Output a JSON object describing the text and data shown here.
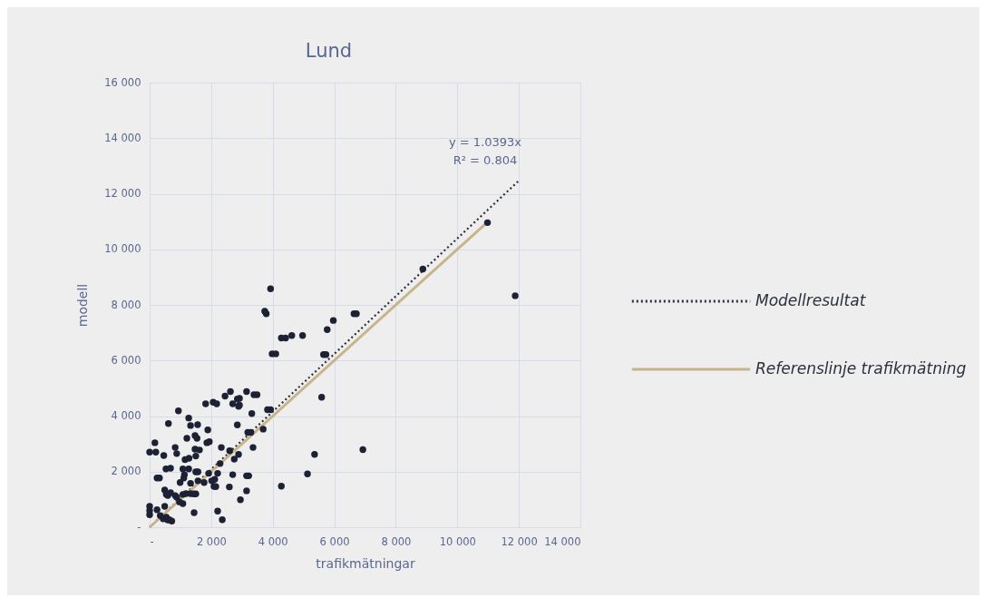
{
  "chart_data": {
    "type": "scatter",
    "title": "Lund",
    "xlabel": "trafikmätningar",
    "ylabel": "modell",
    "annotations": [
      "y = 1.0393x",
      "R² = 0.804"
    ],
    "xlim": [
      0,
      14000
    ],
    "ylim": [
      0,
      16000
    ],
    "xticks": [
      {
        "value": 0,
        "label": "-"
      },
      {
        "value": 2000,
        "label": "2 000"
      },
      {
        "value": 4000,
        "label": "4 000"
      },
      {
        "value": 6000,
        "label": "6 000"
      },
      {
        "value": 8000,
        "label": "8 000"
      },
      {
        "value": 10000,
        "label": "10 000"
      },
      {
        "value": 12000,
        "label": "12 000"
      },
      {
        "value": 14000,
        "label": "14 000"
      }
    ],
    "yticks": [
      {
        "value": 0,
        "label": "-"
      },
      {
        "value": 2000,
        "label": "2 000"
      },
      {
        "value": 4000,
        "label": "4 000"
      },
      {
        "value": 6000,
        "label": "6 000"
      },
      {
        "value": 8000,
        "label": "8 000"
      },
      {
        "value": 10000,
        "label": "10 000"
      },
      {
        "value": 12000,
        "label": "12 000"
      },
      {
        "value": 14000,
        "label": "14 000"
      },
      {
        "value": 16000,
        "label": "16 000"
      }
    ],
    "grid": true,
    "legend": "right",
    "marker": "circle",
    "series": [
      {
        "type": "line",
        "name": "Modellresultat",
        "color": "#2b2f3e",
        "line_style": "dotted",
        "marker": "none",
        "x": [
          0,
          12000
        ],
        "values": [
          0,
          12470
        ]
      },
      {
        "type": "line",
        "name": "Referenslinje trafikmätning",
        "color": "#c8b48a",
        "line_style": "solid",
        "marker": "none",
        "x": [
          0,
          11000
        ],
        "values": [
          0,
          11000
        ]
      },
      {
        "color": "#1c2233",
        "x": [
          0,
          0,
          0,
          0,
          170,
          200,
          460,
          610,
          935,
          1270,
          1330,
          1560,
          830,
          880,
          1210,
          1475,
          1540,
          1890,
          1820,
          2065,
          2180,
          2450,
          2625,
          2700,
          2890,
          2850,
          3150,
          3390,
          3490,
          3980,
          4100,
          3320,
          3830,
          3930,
          2850,
          3690,
          3190,
          3290,
          3360,
          2600,
          2750,
          2890,
          2330,
          1860,
          1940,
          1475,
          1620,
          1500,
          1150,
          1280,
          530,
          680,
          240,
          320,
          1080,
          1130,
          1110,
          1270,
          1500,
          1570,
          990,
          1330,
          1570,
          1920,
          1770,
          2015,
          2115,
          2090,
          2150,
          2210,
          2290,
          2700,
          3150,
          3220,
          2590,
          3150,
          2950,
          4280,
          490,
          540,
          590,
          680,
          830,
          880,
          1080,
          1180,
          1330,
          1430,
          1500,
          970,
          1080,
          240,
          490,
          345,
          440,
          540,
          640,
          720,
          590,
          1445,
          2210,
          2360,
          3930,
          3740,
          3790,
          4280,
          4420,
          4620,
          4970,
          6640,
          6720,
          5970,
          5770,
          5650,
          5730,
          5590,
          5360,
          6930,
          5130,
          2920,
          2920,
          8880,
          10980,
          11880
        ],
        "values": [
          750,
          600,
          450,
          2700,
          3040,
          2700,
          2580,
          3730,
          4190,
          3930,
          3660,
          3690,
          2870,
          2650,
          3200,
          3300,
          3200,
          3500,
          4440,
          4500,
          4440,
          4720,
          4880,
          4440,
          4350,
          4610,
          4880,
          4770,
          4770,
          6240,
          6240,
          4090,
          4230,
          4230,
          3680,
          3530,
          3410,
          3410,
          2870,
          2750,
          2450,
          2620,
          2870,
          3040,
          3080,
          2810,
          2780,
          2560,
          2430,
          2480,
          2100,
          2120,
          1770,
          1770,
          2100,
          1890,
          1770,
          2100,
          1990,
          1990,
          1610,
          1580,
          1670,
          1940,
          1610,
          1670,
          1720,
          1470,
          1460,
          1940,
          2290,
          1890,
          1850,
          1850,
          1450,
          1310,
          990,
          1480,
          1340,
          1180,
          1140,
          1240,
          1140,
          1080,
          1180,
          1210,
          1210,
          1200,
          1200,
          910,
          850,
          630,
          750,
          420,
          300,
          360,
          270,
          220,
          260,
          520,
          580,
          270,
          8580,
          7770,
          7680,
          6810,
          6810,
          6900,
          6900,
          7680,
          7680,
          7440,
          7110,
          6210,
          6210,
          4680,
          2620,
          2790,
          1920,
          4640,
          4390,
          9290,
          10960,
          8330
        ]
      }
    ]
  }
}
